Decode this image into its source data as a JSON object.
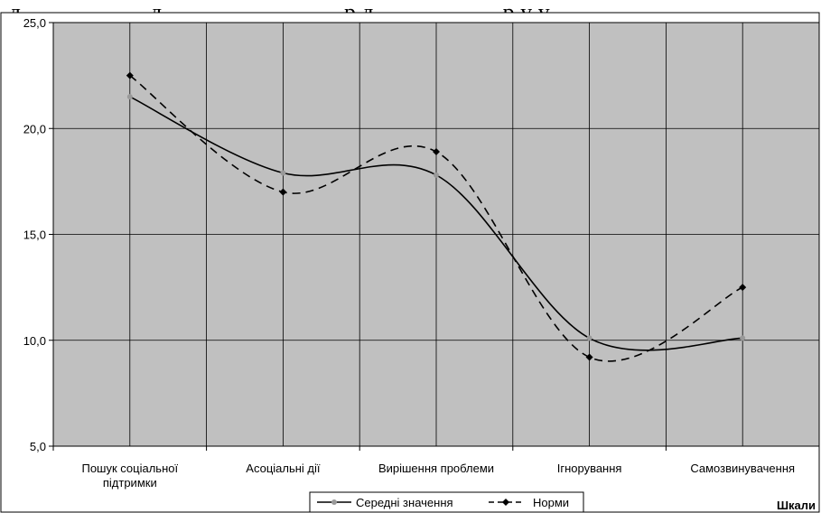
{
  "caption_text": "д                      д                               р д                      р у у",
  "chart_data": {
    "type": "line",
    "categories": [
      [
        "Пошук соціальної",
        "підтримки"
      ],
      [
        "Асоціальні дії"
      ],
      [
        "Вирішення проблеми"
      ],
      [
        "Ігнорування"
      ],
      [
        "Самозвинувачення"
      ]
    ],
    "series": [
      {
        "name": "Середні значення",
        "values": [
          21.5,
          17.9,
          17.8,
          10.1,
          10.1
        ],
        "color": "#999999",
        "dash": "solid",
        "line_color": "#000000"
      },
      {
        "name": "Норми",
        "values": [
          22.5,
          17.0,
          18.9,
          9.2,
          12.5
        ],
        "color": "#000000",
        "dash": "dashed",
        "line_color": "#000000"
      }
    ],
    "ylim": [
      5,
      25
    ],
    "yticks": [
      "5,0",
      "10,0",
      "15,0",
      "20,0",
      "25,0"
    ],
    "xlabel": "Шкали",
    "grid": true,
    "plot_background": "#c0c0c0",
    "legend": "bottom-center"
  }
}
